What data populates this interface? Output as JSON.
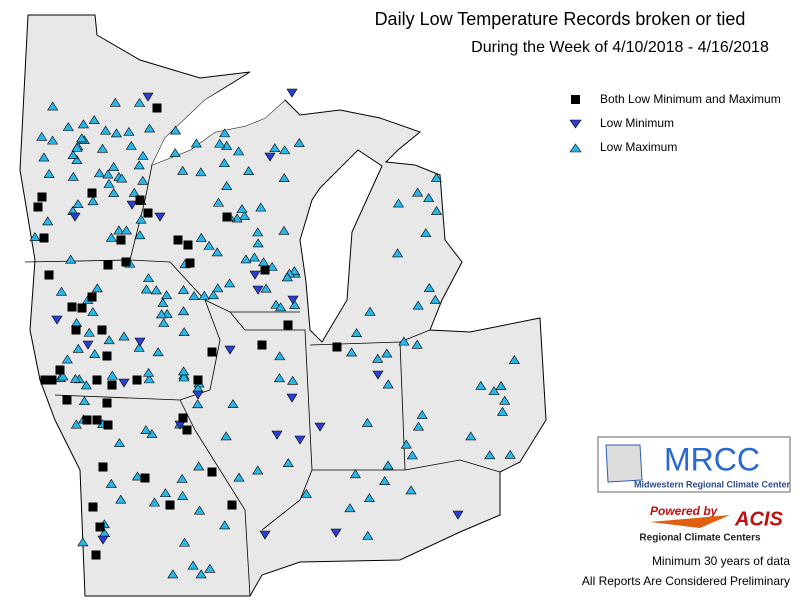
{
  "header": {
    "title": "Daily Low Temperature Records broken or tied",
    "subtitle": "During the Week of 4/10/2018 - 4/16/2018"
  },
  "legend": {
    "items": [
      {
        "label": "Both Low Minimum and Maximum"
      },
      {
        "label": "Low Minimum"
      },
      {
        "label": "Low Maximum"
      }
    ]
  },
  "logos": {
    "mrcc": "MRCC",
    "mrcc_name": "Midwestern Regional Climate Center",
    "powered": "Powered by",
    "acis": "ACIS",
    "acis_name": "Regional Climate Centers"
  },
  "footer": {
    "notes": [
      "Minimum 30 years of data",
      "All Reports Are Considered Preliminary"
    ]
  }
}
